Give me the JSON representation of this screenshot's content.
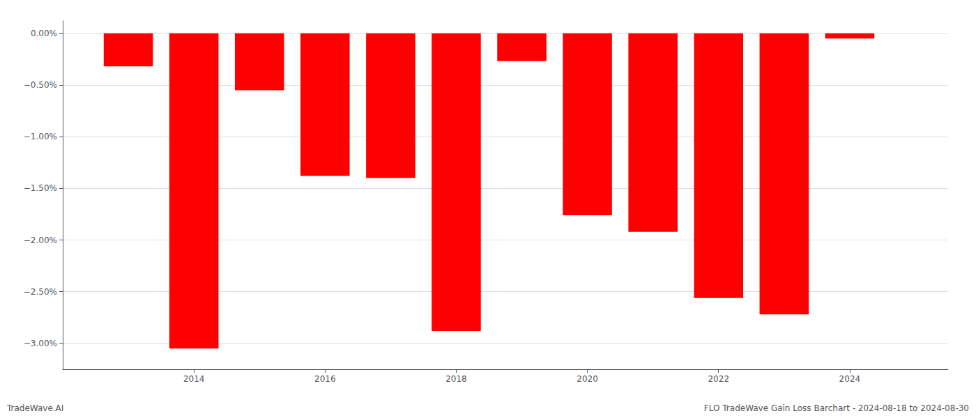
{
  "chart_data": {
    "type": "bar",
    "x": [
      2013,
      2014,
      2015,
      2016,
      2017,
      2018,
      2019,
      2020,
      2021,
      2022,
      2023,
      2024
    ],
    "values": [
      -0.32,
      -3.05,
      -0.55,
      -1.38,
      -1.4,
      -2.88,
      -0.27,
      -1.76,
      -1.92,
      -2.56,
      -2.72,
      -0.05
    ],
    "color": "#ff0000",
    "xlim": [
      2012.0,
      2025.5
    ],
    "xticks": [
      2014,
      2016,
      2018,
      2020,
      2022,
      2024
    ],
    "ylim": [
      -3.25,
      0.12
    ],
    "yticks": [
      {
        "value": 0.0,
        "label": "0.00%"
      },
      {
        "value": -0.5,
        "label": "−0.50%"
      },
      {
        "value": -1.0,
        "label": "−1.00%"
      },
      {
        "value": -1.5,
        "label": "−1.50%"
      },
      {
        "value": -2.0,
        "label": "−2.00%"
      },
      {
        "value": -2.5,
        "label": "−2.50%"
      },
      {
        "value": -3.0,
        "label": "−3.00%"
      }
    ],
    "grid": true,
    "annotations": [
      "TradeWave.AI",
      "FLO TradeWave Gain Loss Barchart - 2024-08-18 to 2024-08-30"
    ]
  }
}
